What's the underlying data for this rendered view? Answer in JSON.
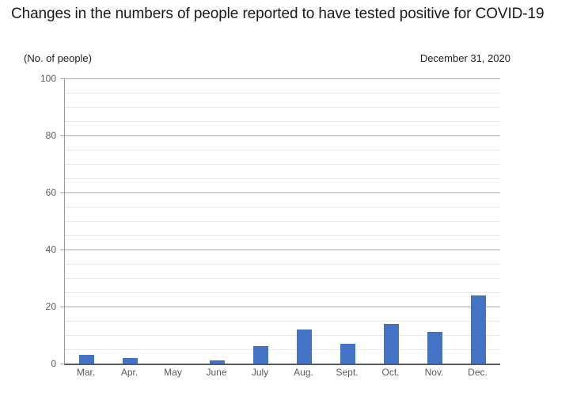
{
  "title": "Changes in the numbers of people reported to have tested positive for COVID-19",
  "chart_data": {
    "type": "bar",
    "title": "Changes in the numbers of people reported to have tested positive for COVID-19",
    "unit_label": "(No. of people)",
    "date_label": "December 31, 2020",
    "categories": [
      "Mar.",
      "Apr.",
      "May",
      "June",
      "July",
      "Aug.",
      "Sept.",
      "Oct.",
      "Nov.",
      "Dec."
    ],
    "values": [
      3,
      2,
      0,
      1,
      6,
      12,
      7,
      14,
      11,
      24
    ],
    "xlabel": "",
    "ylabel": "(No. of people)",
    "ylim": [
      0,
      100
    ],
    "y_major_ticks": [
      0,
      20,
      40,
      60,
      80,
      100
    ],
    "y_minor_interval": 5,
    "grid": "horizontal-major-and-minor",
    "legend": "none",
    "bar_color": "#4472C4"
  },
  "colors": {
    "bar": "#4472C4",
    "major_gridline": "#A8A8A8",
    "minor_gridline": "#E9E9E9",
    "axis_line": "#595959",
    "tick_label": "#595959",
    "title_text": "#1A1A1A",
    "background": "#FFFFFF"
  }
}
